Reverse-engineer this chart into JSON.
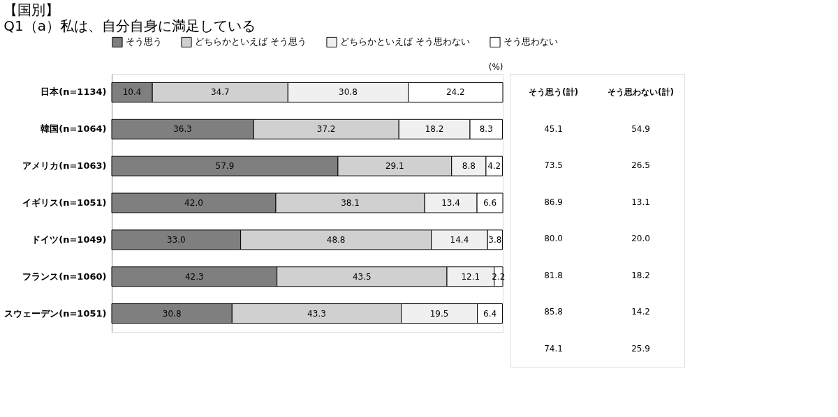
{
  "chart_data": {
    "type": "bar",
    "orientation": "horizontal",
    "stacked": true,
    "title": "【国別】",
    "subtitle": "Q1（a）私は、自分自身に満足している",
    "xlabel": "(%)",
    "categories": [
      "日本(n=1134)",
      "韓国(n=1064)",
      "アメリカ(n=1063)",
      "イギリス(n=1051)",
      "ドイツ(n=1049)",
      "フランス(n=1060)",
      "スウェーデン(n=1051)"
    ],
    "series": [
      {
        "name": "そう思う",
        "color": "#7f7f7f",
        "values": [
          10.4,
          36.3,
          57.9,
          42.0,
          33.0,
          42.3,
          30.8
        ],
        "value_labels": [
          "10.4",
          "36.3",
          "57.9",
          "42.0",
          "33.0",
          "42.3",
          "30.8"
        ]
      },
      {
        "name": "どちらかといえば そう思う",
        "color": "#d0d0d0",
        "values": [
          34.7,
          37.2,
          29.1,
          38.1,
          48.8,
          43.5,
          43.3
        ],
        "value_labels": [
          "34.7",
          "37.2",
          "29.1",
          "38.1",
          "48.8",
          "43.5",
          "43.3"
        ]
      },
      {
        "name": "どちらかといえば そう思わない",
        "color": "#f0f0f0",
        "values": [
          30.8,
          18.2,
          8.8,
          13.4,
          14.4,
          12.1,
          19.5
        ],
        "value_labels": [
          "30.8",
          "18.2",
          "8.8",
          "13.4",
          "14.4",
          "12.1",
          "19.5"
        ]
      },
      {
        "name": "そう思わない",
        "color": "#ffffff",
        "values": [
          24.2,
          8.3,
          4.2,
          6.6,
          3.8,
          2.2,
          6.4
        ],
        "value_labels": [
          "24.2",
          "8.3",
          "4.2",
          "6.6",
          "3.8",
          "2.2",
          "6.4"
        ]
      }
    ],
    "xlim": [
      0,
      100.1
    ],
    "tick_labels": "y",
    "legend": "top",
    "grid": false,
    "annotations": [
      "そう思う(計)",
      "そう思わない(計)",
      "45.1",
      "54.9",
      "73.5",
      "26.5",
      "86.9",
      "13.1",
      "80.0",
      "20.0",
      "81.8",
      "18.2",
      "85.8",
      "14.2",
      "74.1",
      "25.9"
    ]
  }
}
